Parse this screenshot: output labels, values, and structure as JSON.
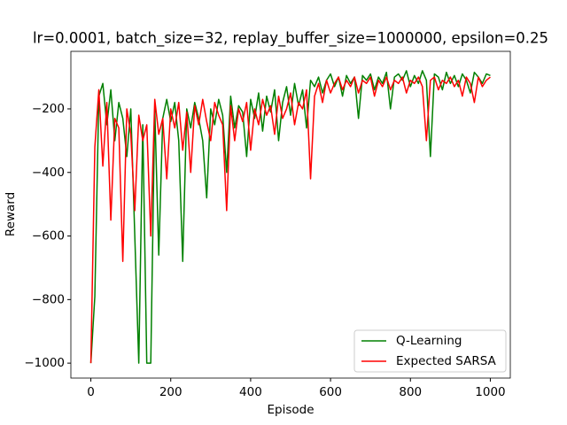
{
  "chart_data": {
    "type": "line",
    "title": "lr=0.0001, batch_size=32, replay_buffer_size=1000000, epsilon=0.25",
    "x_label": "Episode",
    "y_label": "Reward",
    "x": [
      0,
      10,
      20,
      30,
      40,
      50,
      60,
      70,
      80,
      90,
      100,
      110,
      120,
      130,
      140,
      150,
      160,
      170,
      180,
      190,
      200,
      210,
      220,
      230,
      240,
      250,
      260,
      270,
      280,
      290,
      300,
      310,
      320,
      330,
      340,
      350,
      360,
      370,
      380,
      390,
      400,
      410,
      420,
      430,
      440,
      450,
      460,
      470,
      480,
      490,
      500,
      510,
      520,
      530,
      540,
      550,
      560,
      570,
      580,
      590,
      600,
      610,
      620,
      630,
      640,
      650,
      660,
      670,
      680,
      690,
      700,
      710,
      720,
      730,
      740,
      750,
      760,
      770,
      780,
      790,
      800,
      810,
      820,
      830,
      840,
      850,
      860,
      870,
      880,
      890,
      900,
      910,
      920,
      930,
      940,
      950,
      960,
      970,
      980,
      990,
      1000
    ],
    "series": [
      {
        "name": "Q-Learning",
        "color": "#008000",
        "values": [
          -1000,
          -790,
          -160,
          -120,
          -250,
          -140,
          -300,
          -180,
          -230,
          -350,
          -200,
          -600,
          -1000,
          -250,
          -1000,
          -1000,
          -200,
          -660,
          -230,
          -170,
          -240,
          -180,
          -300,
          -680,
          -200,
          -260,
          -180,
          -230,
          -300,
          -480,
          -200,
          -250,
          -170,
          -220,
          -400,
          -160,
          -260,
          -190,
          -210,
          -350,
          -170,
          -230,
          -150,
          -270,
          -160,
          -210,
          -140,
          -300,
          -180,
          -130,
          -220,
          -120,
          -190,
          -140,
          -260,
          -110,
          -130,
          -100,
          -150,
          -110,
          -90,
          -130,
          -100,
          -160,
          -95,
          -120,
          -100,
          -230,
          -95,
          -110,
          -90,
          -140,
          -100,
          -120,
          -85,
          -200,
          -100,
          -90,
          -110,
          -80,
          -130,
          -95,
          -120,
          -80,
          -110,
          -350,
          -90,
          -100,
          -140,
          -85,
          -120,
          -95,
          -130,
          -90,
          -110,
          -150,
          -85,
          -100,
          -120,
          -90,
          -95
        ]
      },
      {
        "name": "Expected SARSA",
        "color": "#ff0000",
        "values": [
          -1000,
          -320,
          -140,
          -380,
          -180,
          -550,
          -230,
          -260,
          -680,
          -200,
          -280,
          -520,
          -220,
          -300,
          -250,
          -600,
          -170,
          -280,
          -230,
          -420,
          -200,
          -260,
          -180,
          -330,
          -210,
          -400,
          -190,
          -250,
          -170,
          -240,
          -300,
          -180,
          -220,
          -250,
          -520,
          -190,
          -300,
          -200,
          -240,
          -180,
          -330,
          -200,
          -250,
          -170,
          -220,
          -190,
          -280,
          -160,
          -230,
          -200,
          -150,
          -250,
          -180,
          -200,
          -140,
          -420,
          -160,
          -120,
          -180,
          -110,
          -150,
          -120,
          -100,
          -140,
          -110,
          -130,
          -100,
          -150,
          -110,
          -120,
          -100,
          -160,
          -110,
          -130,
          -100,
          -140,
          -110,
          -120,
          -100,
          -150,
          -110,
          -120,
          -100,
          -130,
          -300,
          -110,
          -100,
          -140,
          -110,
          -120,
          -100,
          -130,
          -110,
          -160,
          -100,
          -120,
          -180,
          -100,
          -130,
          -110,
          -100
        ]
      }
    ],
    "xlim": [
      -50,
      1050
    ],
    "ylim": [
      -1047,
      -19
    ],
    "xticks": [
      0,
      200,
      400,
      600,
      800,
      1000
    ],
    "yticks": [
      {
        "value": -1000,
        "label": "−1000"
      },
      {
        "value": -800,
        "label": "−800"
      },
      {
        "value": -600,
        "label": "−600"
      },
      {
        "value": -400,
        "label": "−400"
      },
      {
        "value": -200,
        "label": "−200"
      }
    ],
    "legend": "lower right"
  }
}
